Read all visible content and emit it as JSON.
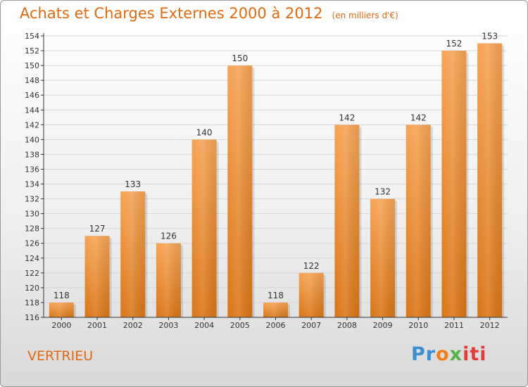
{
  "title": "Achats et Charges Externes 2000 à 2012",
  "subtitle": "(en milliers d'€)",
  "commune": "VERTRIEU",
  "logo": {
    "parts": [
      "Pr",
      "o",
      "x",
      "iti"
    ]
  },
  "colors": {
    "bar_light": "#f6a354",
    "bar_dark": "#d97516",
    "title": "#e06a10",
    "axis": "#333333",
    "grid": "#d6d6d6"
  },
  "chart_data": {
    "type": "bar",
    "categories": [
      "2000",
      "2001",
      "2002",
      "2003",
      "2004",
      "2005",
      "2006",
      "2007",
      "2008",
      "2009",
      "2010",
      "2011",
      "2012"
    ],
    "values": [
      118,
      127,
      133,
      126,
      140,
      150,
      118,
      122,
      142,
      132,
      142,
      152,
      153
    ],
    "ylim": [
      116,
      154
    ],
    "yticks": [
      116,
      118,
      120,
      122,
      124,
      126,
      128,
      130,
      132,
      134,
      136,
      138,
      140,
      142,
      144,
      146,
      148,
      150,
      152,
      154
    ],
    "grid": "horizontal",
    "xlabel": "",
    "ylabel": ""
  }
}
